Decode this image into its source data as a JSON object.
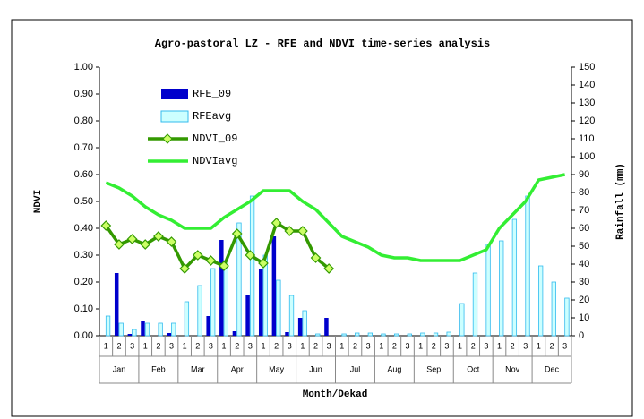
{
  "chart_data": {
    "type": "bar-line",
    "title": "Agro-pastoral LZ - RFE and NDVI time-series analysis",
    "y_label": "NDVI",
    "y2_label": "Rainfall (mm)",
    "x_label": "Month/Dekad",
    "categories": [
      "1",
      "2",
      "3",
      "1",
      "2",
      "3",
      "1",
      "2",
      "3",
      "1",
      "2",
      "3",
      "1",
      "2",
      "3",
      "1",
      "2",
      "3",
      "1",
      "2",
      "3",
      "1",
      "2",
      "3",
      "1",
      "2",
      "3",
      "1",
      "2",
      "3",
      "1",
      "2",
      "3",
      "1",
      "2",
      "3"
    ],
    "months": [
      "Jan",
      "Feb",
      "Mar",
      "Apr",
      "May",
      "Jun",
      "Jul",
      "Aug",
      "Sep",
      "Oct",
      "Nov",
      "Dec"
    ],
    "ylim": [
      0,
      1
    ],
    "yticks": [
      {
        "value": 0,
        "label": "0.00"
      },
      {
        "value": 0.1,
        "label": "0.10"
      },
      {
        "value": 0.2,
        "label": "0.20"
      },
      {
        "value": 0.3,
        "label": "0.30"
      },
      {
        "value": 0.4,
        "label": "0.40"
      },
      {
        "value": 0.5,
        "label": "0.50"
      },
      {
        "value": 0.6,
        "label": "0.60"
      },
      {
        "value": 0.7,
        "label": "0.70"
      },
      {
        "value": 0.8,
        "label": "0.80"
      },
      {
        "value": 0.9,
        "label": "0.90"
      },
      {
        "value": 1,
        "label": "1.00"
      }
    ],
    "y2lim": [
      0,
      150
    ],
    "y2ticks": [
      0,
      10,
      20,
      30,
      40,
      50,
      60,
      70,
      80,
      90,
      100,
      110,
      120,
      130,
      140,
      150
    ],
    "legend": "upper left",
    "series": [
      {
        "name": "RFE_09",
        "kind": "bar",
        "axis": "y2",
        "color": "#0000cc",
        "values": [
          0,
          35,
          1,
          8.5,
          0,
          1.5,
          0,
          0,
          11,
          53.5,
          2.5,
          22.5,
          37.5,
          55.5,
          2,
          10,
          0,
          10,
          null,
          null,
          null,
          null,
          null,
          null,
          null,
          null,
          null,
          null,
          null,
          null,
          null,
          null,
          null,
          null,
          null,
          null
        ]
      },
      {
        "name": "RFEavg",
        "kind": "bar",
        "axis": "y2",
        "color": "#ccffff",
        "edge_color": "#33bbee",
        "values": [
          11,
          7,
          3.5,
          7,
          7,
          7,
          19,
          28,
          37.5,
          42,
          63,
          78,
          45,
          31,
          22.5,
          14,
          1,
          0,
          1,
          1.5,
          1.5,
          1,
          1,
          1,
          1.5,
          1.5,
          2,
          18,
          35,
          51,
          53,
          65,
          78,
          39,
          30,
          21
        ]
      },
      {
        "name": "NDVI_09",
        "kind": "line",
        "marker": "diamond",
        "color": "#339900",
        "marker_color": "#ccff66",
        "values": [
          0.41,
          0.34,
          0.36,
          0.34,
          0.37,
          0.35,
          0.25,
          0.3,
          0.28,
          0.26,
          0.38,
          0.3,
          0.27,
          0.42,
          0.39,
          0.39,
          0.29,
          0.25,
          null,
          null,
          null,
          null,
          null,
          null,
          null,
          null,
          null,
          null,
          null,
          null,
          null,
          null,
          null,
          null,
          null,
          null
        ]
      },
      {
        "name": "NDVIavg",
        "kind": "line",
        "color": "#33ee33",
        "values": [
          0.57,
          0.55,
          0.52,
          0.48,
          0.45,
          0.43,
          0.4,
          0.4,
          0.4,
          0.44,
          0.47,
          0.5,
          0.54,
          0.54,
          0.54,
          0.5,
          0.47,
          0.42,
          0.37,
          0.35,
          0.33,
          0.3,
          0.29,
          0.29,
          0.28,
          0.28,
          0.28,
          0.28,
          0.3,
          0.32,
          0.4,
          0.45,
          0.5,
          0.58,
          0.59,
          0.6
        ]
      }
    ]
  }
}
